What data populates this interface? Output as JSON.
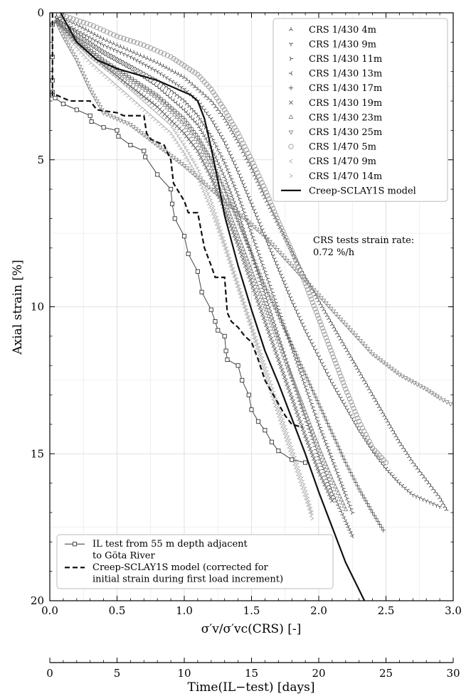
{
  "chart_data": {
    "type": "scatter",
    "title": "",
    "xlabel": "σ′v/σ′vc(CRS) [-]",
    "ylabel": "Axial strain [%]",
    "xlim": [
      0.0,
      3.0
    ],
    "ylim": [
      0,
      20
    ],
    "y_inverted": true,
    "grid": true,
    "legend_position": "top-right",
    "x_ticks": [
      "0.0",
      "0.5",
      "1.0",
      "1.5",
      "2.0",
      "2.5",
      "3.0"
    ],
    "y_ticks": [
      "0",
      "5",
      "10",
      "15",
      "20"
    ],
    "secondary_x_axis": {
      "label": "Time(IL−test) [days]",
      "ticks": [
        "0",
        "5",
        "10",
        "15",
        "20",
        "25",
        "30"
      ],
      "range": [
        0,
        30
      ]
    },
    "annotation": {
      "line1": "CRS tests strain rate:",
      "line2": "0.72 %/h"
    },
    "series": [
      {
        "name": "CRS 1/430 4m",
        "marker": "tri_down",
        "color": "#444444",
        "x": [
          0.05,
          0.2,
          0.4,
          0.6,
          0.8,
          1.0,
          1.1,
          1.2,
          1.3,
          1.4,
          1.5,
          1.6,
          1.7,
          1.8,
          1.9,
          2.0,
          2.1,
          2.2,
          2.3,
          2.4,
          2.5,
          2.6,
          2.7,
          2.8,
          2.9,
          2.95
        ],
        "y": [
          0.1,
          0.4,
          0.9,
          1.3,
          1.7,
          2.2,
          2.6,
          3.0,
          3.6,
          4.4,
          5.3,
          6.3,
          7.2,
          8.1,
          9.0,
          9.8,
          10.6,
          11.4,
          12.2,
          13.0,
          13.8,
          14.6,
          15.3,
          15.9,
          16.5,
          16.9
        ]
      },
      {
        "name": "CRS 1/430 9m",
        "marker": "tri_up",
        "color": "#444444",
        "x": [
          0.05,
          0.2,
          0.4,
          0.6,
          0.8,
          1.0,
          1.1,
          1.2,
          1.3,
          1.4,
          1.5,
          1.6,
          1.7,
          1.8,
          1.9,
          2.0,
          2.1,
          2.2,
          2.3,
          2.4,
          2.5,
          2.6,
          2.7,
          2.8,
          2.9
        ],
        "y": [
          0.2,
          0.6,
          1.1,
          1.5,
          2.0,
          2.6,
          3.0,
          3.6,
          4.4,
          5.4,
          6.5,
          7.6,
          8.7,
          9.8,
          10.8,
          11.7,
          12.6,
          13.4,
          14.2,
          14.9,
          15.5,
          16.0,
          16.4,
          16.6,
          16.8
        ]
      },
      {
        "name": "CRS 1/430 11m",
        "marker": "tri_left",
        "color": "#444444",
        "x": [
          0.05,
          0.2,
          0.4,
          0.6,
          0.8,
          1.0,
          1.1,
          1.2,
          1.3,
          1.4,
          1.5,
          1.6,
          1.7,
          1.8,
          1.9,
          2.0,
          2.1,
          2.2,
          2.25
        ],
        "y": [
          0.2,
          0.7,
          1.3,
          1.8,
          2.3,
          3.0,
          3.5,
          4.2,
          5.1,
          6.2,
          7.5,
          8.8,
          10.1,
          11.4,
          12.7,
          14.0,
          15.2,
          16.4,
          17.0
        ]
      },
      {
        "name": "CRS 1/430 13m",
        "marker": "tri_right",
        "color": "#444444",
        "x": [
          0.05,
          0.2,
          0.4,
          0.6,
          0.8,
          1.0,
          1.1,
          1.2,
          1.3,
          1.4,
          1.5,
          1.6,
          1.7,
          1.8,
          1.9,
          2.0,
          2.1,
          2.2,
          2.25
        ],
        "y": [
          0.3,
          0.8,
          1.4,
          1.9,
          2.5,
          3.3,
          3.8,
          4.6,
          5.6,
          6.8,
          8.2,
          9.6,
          11.0,
          12.4,
          13.8,
          15.1,
          16.3,
          17.3,
          17.8
        ]
      },
      {
        "name": "CRS 1/430 17m",
        "marker": "plus",
        "color": "#555555",
        "x": [
          0.05,
          0.2,
          0.4,
          0.6,
          0.8,
          1.0,
          1.1,
          1.2,
          1.3,
          1.4,
          1.5,
          1.6,
          1.7,
          1.8,
          1.9,
          2.0,
          2.1,
          2.2,
          2.3,
          2.4,
          2.48
        ],
        "y": [
          0.3,
          0.9,
          1.6,
          2.2,
          2.8,
          3.6,
          4.2,
          5.0,
          6.0,
          7.1,
          8.2,
          9.3,
          10.3,
          11.3,
          12.3,
          13.3,
          14.3,
          15.3,
          16.2,
          17.0,
          17.6
        ]
      },
      {
        "name": "CRS 1/430 19m",
        "marker": "x",
        "color": "#555555",
        "x": [
          0.05,
          0.2,
          0.4,
          0.6,
          0.8,
          1.0,
          1.1,
          1.2,
          1.3,
          1.4,
          1.5,
          1.6,
          1.7,
          1.8,
          1.9,
          2.0,
          2.1
        ],
        "y": [
          0.3,
          1.0,
          1.8,
          2.5,
          3.2,
          4.1,
          4.7,
          5.6,
          6.7,
          7.9,
          9.2,
          10.5,
          11.8,
          13.1,
          14.4,
          15.6,
          16.6
        ]
      },
      {
        "name": "CRS 1/430 23m",
        "marker": "triangle_up",
        "color": "#888888",
        "x": [
          0.05,
          0.2,
          0.4,
          0.6,
          0.8,
          1.0,
          1.1,
          1.2,
          1.3,
          1.4,
          1.5,
          1.6,
          1.7,
          1.8,
          1.9,
          2.0,
          2.1,
          2.2
        ],
        "y": [
          0.3,
          1.0,
          1.7,
          2.3,
          2.9,
          3.8,
          4.4,
          5.3,
          6.4,
          7.6,
          8.8,
          10.0,
          11.2,
          12.4,
          13.6,
          14.8,
          15.9,
          16.9
        ]
      },
      {
        "name": "CRS 1/430 25m",
        "marker": "triangle_down",
        "color": "#888888",
        "x": [
          0.05,
          0.1,
          0.2,
          0.3,
          0.4,
          0.5,
          0.6,
          0.8,
          1.0,
          1.2,
          1.4,
          1.6,
          1.8,
          2.0,
          2.2,
          2.4,
          2.6,
          2.8,
          2.9,
          2.98
        ],
        "y": [
          0.3,
          0.8,
          1.6,
          2.6,
          3.4,
          3.6,
          3.8,
          4.5,
          5.2,
          6.0,
          6.8,
          7.6,
          8.6,
          9.6,
          10.6,
          11.6,
          12.3,
          12.8,
          13.1,
          13.3
        ]
      },
      {
        "name": "CRS 1/470 5m",
        "marker": "circle",
        "color": "#999999",
        "x": [
          0.1,
          0.3,
          0.5,
          0.7,
          0.9,
          1.0,
          1.1,
          1.2,
          1.3,
          1.4,
          1.5,
          1.6,
          1.7,
          1.8,
          1.9,
          2.0,
          2.1,
          2.2,
          2.3,
          2.4,
          2.5
        ],
        "y": [
          0.1,
          0.4,
          0.8,
          1.1,
          1.5,
          1.8,
          2.1,
          2.6,
          3.3,
          4.1,
          5.0,
          6.0,
          7.1,
          8.1,
          9.2,
          10.4,
          11.6,
          12.8,
          13.9,
          14.8,
          15.3
        ]
      },
      {
        "name": "CRS 1/470 9m",
        "marker": "caret_left",
        "color": "#aaaaaa",
        "x": [
          0.1,
          0.3,
          0.5,
          0.7,
          0.9,
          1.0,
          1.1,
          1.2,
          1.3,
          1.4,
          1.5,
          1.6,
          1.7,
          1.8,
          1.9,
          1.95
        ],
        "y": [
          0.6,
          1.5,
          2.2,
          3.0,
          3.8,
          4.5,
          5.3,
          6.4,
          7.8,
          9.2,
          10.6,
          12.0,
          13.4,
          14.8,
          16.2,
          17.0
        ]
      },
      {
        "name": "CRS 1/470 14m",
        "marker": "caret_right",
        "color": "#aaaaaa",
        "x": [
          0.1,
          0.3,
          0.5,
          0.7,
          0.9,
          1.0,
          1.1,
          1.2,
          1.3,
          1.4,
          1.5,
          1.6,
          1.7,
          1.8,
          1.9,
          1.95
        ],
        "y": [
          0.7,
          1.7,
          2.5,
          3.3,
          4.1,
          4.8,
          5.6,
          6.7,
          8.0,
          9.4,
          10.8,
          12.3,
          13.7,
          15.1,
          16.5,
          17.2
        ]
      },
      {
        "name": "Creep-SCLAY1S model",
        "style": "solid",
        "color": "#111111",
        "x": [
          0.08,
          0.2,
          0.35,
          0.5,
          0.65,
          0.8,
          0.9,
          1.0,
          1.05,
          1.1,
          1.15,
          1.2,
          1.25,
          1.3,
          1.4,
          1.5,
          1.6,
          1.7,
          1.8,
          1.9,
          2.0,
          2.1,
          2.2,
          2.34
        ],
        "y": [
          0.0,
          1.0,
          1.6,
          1.9,
          2.1,
          2.3,
          2.5,
          2.7,
          2.8,
          3.0,
          3.6,
          4.6,
          5.7,
          6.9,
          8.6,
          10.1,
          11.5,
          12.6,
          13.8,
          15.0,
          16.3,
          17.5,
          18.7,
          20.0
        ]
      },
      {
        "name": "IL test from 55 m depth adjacent to Göta River",
        "style": "line_square",
        "color": "#333333",
        "x": [
          0.02,
          0.02,
          0.02,
          0.02,
          0.02,
          0.04,
          0.1,
          0.2,
          0.3,
          0.31,
          0.4,
          0.5,
          0.51,
          0.6,
          0.7,
          0.71,
          0.8,
          0.9,
          0.91,
          0.93,
          1.0,
          1.03,
          1.1,
          1.13,
          1.2,
          1.23,
          1.25,
          1.3,
          1.31,
          1.32,
          1.4,
          1.43,
          1.48,
          1.5,
          1.55,
          1.6,
          1.65,
          1.7,
          1.8,
          1.9
        ],
        "y": [
          0.4,
          1.5,
          2.3,
          2.7,
          2.8,
          2.9,
          3.1,
          3.3,
          3.5,
          3.7,
          3.9,
          4.0,
          4.2,
          4.5,
          4.7,
          4.9,
          5.5,
          6.0,
          6.5,
          7.0,
          7.6,
          8.2,
          8.8,
          9.5,
          10.1,
          10.5,
          10.8,
          11.0,
          11.5,
          11.8,
          12.0,
          12.5,
          13.0,
          13.5,
          13.9,
          14.2,
          14.6,
          14.9,
          15.2,
          15.3
        ]
      },
      {
        "name": "Creep-SCLAY1S model (corrected for initial strain during first load increment)",
        "style": "dashed",
        "color": "#111111",
        "x": [
          0.02,
          0.02,
          0.05,
          0.15,
          0.3,
          0.35,
          0.5,
          0.55,
          0.7,
          0.72,
          0.75,
          0.85,
          0.9,
          0.92,
          1.0,
          1.03,
          1.1,
          1.15,
          1.2,
          1.23,
          1.3,
          1.32,
          1.35,
          1.4,
          1.45,
          1.5,
          1.55,
          1.6,
          1.7,
          1.75,
          1.8,
          1.88
        ],
        "y": [
          0.0,
          2.8,
          2.8,
          3.0,
          3.0,
          3.3,
          3.4,
          3.5,
          3.5,
          4.1,
          4.3,
          4.5,
          5.0,
          5.8,
          6.4,
          6.8,
          6.8,
          8.0,
          8.6,
          9.0,
          9.0,
          10.2,
          10.5,
          10.7,
          11.0,
          11.2,
          11.8,
          12.5,
          13.3,
          13.7,
          14.0,
          14.1
        ]
      }
    ]
  }
}
